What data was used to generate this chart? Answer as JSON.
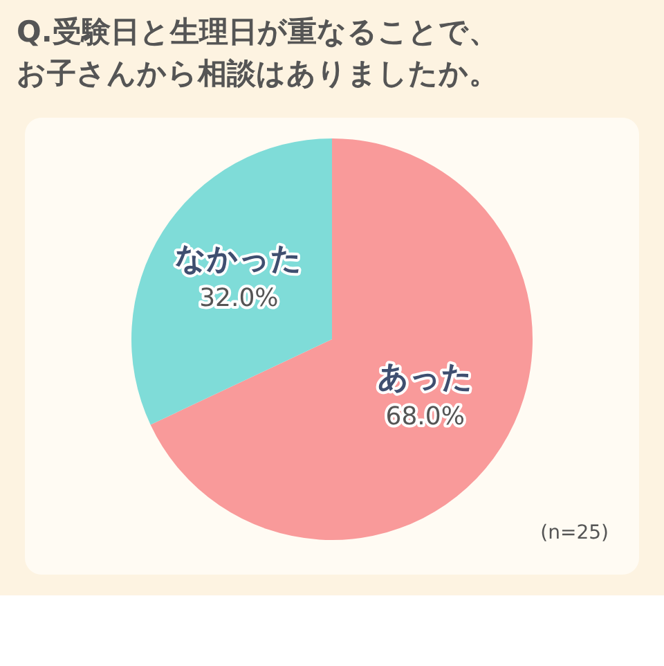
{
  "chart_data": {
    "type": "pie",
    "title": "Q.受験日と生理日が重なることで、お子さんから相談はありましたか。",
    "categories": [
      "あった",
      "なかった"
    ],
    "values": [
      68.0,
      32.0
    ],
    "value_labels": [
      "68.0%",
      "32.0%"
    ],
    "colors": [
      "#f99a9a",
      "#7fdcd8"
    ],
    "annotations": [
      "(n=25)"
    ],
    "legend": false
  }
}
